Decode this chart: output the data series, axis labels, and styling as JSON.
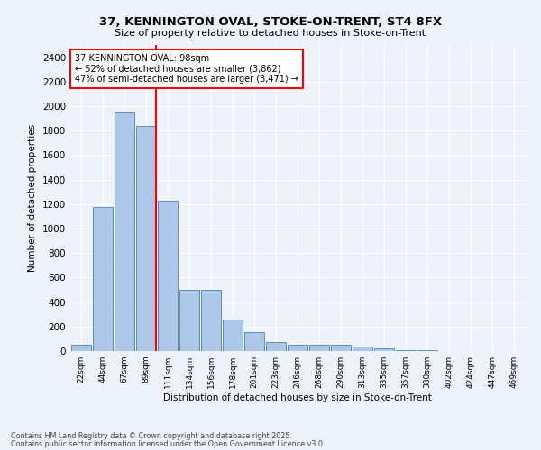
{
  "title1": "37, KENNINGTON OVAL, STOKE-ON-TRENT, ST4 8FX",
  "title2": "Size of property relative to detached houses in Stoke-on-Trent",
  "xlabel": "Distribution of detached houses by size in Stoke-on-Trent",
  "ylabel": "Number of detached properties",
  "categories": [
    "22sqm",
    "44sqm",
    "67sqm",
    "89sqm",
    "111sqm",
    "134sqm",
    "156sqm",
    "178sqm",
    "201sqm",
    "223sqm",
    "246sqm",
    "268sqm",
    "290sqm",
    "313sqm",
    "335sqm",
    "357sqm",
    "380sqm",
    "402sqm",
    "424sqm",
    "447sqm",
    "469sqm"
  ],
  "values": [
    50,
    1180,
    1950,
    1840,
    1230,
    500,
    500,
    260,
    155,
    75,
    50,
    55,
    55,
    40,
    20,
    10,
    5,
    3,
    2,
    1,
    1
  ],
  "bar_color": "#aec6e8",
  "bar_edge_color": "#5a8fc0",
  "vline_color": "red",
  "vline_pos": 3.45,
  "annotation_text": "37 KENNINGTON OVAL: 98sqm\n← 52% of detached houses are smaller (3,862)\n47% of semi-detached houses are larger (3,471) →",
  "annotation_box_color": "white",
  "annotation_box_edge_color": "red",
  "ylim": [
    0,
    2500
  ],
  "yticks": [
    0,
    200,
    400,
    600,
    800,
    1000,
    1200,
    1400,
    1600,
    1800,
    2000,
    2200,
    2400
  ],
  "footnote1": "Contains HM Land Registry data © Crown copyright and database right 2025.",
  "footnote2": "Contains public sector information licensed under the Open Government Licence v3.0.",
  "bg_color": "#eef3fb",
  "grid_color": "white"
}
